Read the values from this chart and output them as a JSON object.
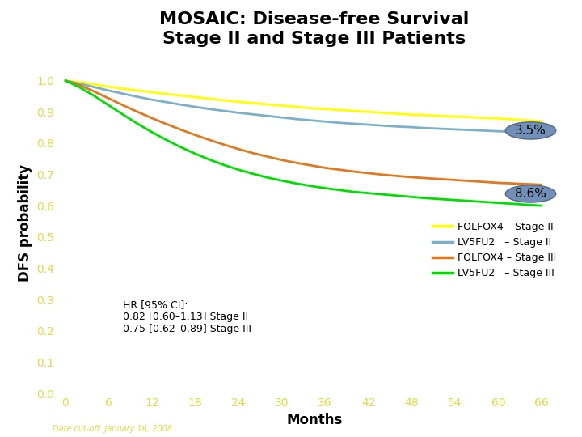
{
  "title": "MOSAIC: Disease-free Survival\nStage II and Stage III Patients",
  "xlabel": "Months",
  "ylabel": "DFS probability",
  "yticks": [
    0.0,
    0.1,
    0.2,
    0.3,
    0.4,
    0.5,
    0.6,
    0.7,
    0.8,
    0.9,
    1.0
  ],
  "xticks": [
    0,
    6,
    12,
    18,
    24,
    30,
    36,
    42,
    48,
    54,
    60,
    66
  ],
  "xlim": [
    -1,
    70
  ],
  "ylim": [
    0.0,
    1.09
  ],
  "background_color": "#ffffff",
  "title_fontsize": 16,
  "axis_label_fontsize": 12,
  "tick_label_color": "#dddd44",
  "date_cutoff_text": "Date cut-off: January 16, 2008",
  "hr_text": "HR [95% CI]:\n0.82 [0.60–1.13] Stage II\n0.75 [0.62–0.89] Stage III",
  "annotation_35": "3.5%",
  "annotation_86": "8.6%",
  "annotation_bubble_color": "#7090b8",
  "legend_entries": [
    {
      "label": "FOLFOX4 – Stage II",
      "color": "#ffff00"
    },
    {
      "label": "LV5FU2   – Stage II",
      "color": "#7ab0c8"
    },
    {
      "label": "FOLFOX4 – Stage III",
      "color": "#e07820"
    },
    {
      "label": "LV5FU2   – Stage III",
      "color": "#00dd00"
    }
  ],
  "curves": {
    "folfox4_stageII": {
      "color": "#ffff00",
      "x": [
        0,
        2,
        4,
        6,
        8,
        10,
        12,
        14,
        16,
        18,
        20,
        22,
        24,
        26,
        28,
        30,
        32,
        34,
        36,
        38,
        40,
        42,
        44,
        46,
        48,
        50,
        52,
        54,
        56,
        58,
        60,
        62,
        64,
        66
      ],
      "y": [
        1.0,
        0.995,
        0.988,
        0.98,
        0.974,
        0.968,
        0.963,
        0.957,
        0.952,
        0.947,
        0.942,
        0.937,
        0.932,
        0.928,
        0.924,
        0.92,
        0.916,
        0.912,
        0.909,
        0.906,
        0.903,
        0.9,
        0.897,
        0.894,
        0.891,
        0.889,
        0.887,
        0.885,
        0.883,
        0.881,
        0.879,
        0.876,
        0.873,
        0.87
      ]
    },
    "lv5fu2_stageII": {
      "color": "#7ab0c8",
      "x": [
        0,
        2,
        4,
        6,
        8,
        10,
        12,
        14,
        16,
        18,
        20,
        22,
        24,
        26,
        28,
        30,
        32,
        34,
        36,
        38,
        40,
        42,
        44,
        46,
        48,
        50,
        52,
        54,
        56,
        58,
        60,
        62,
        64,
        66
      ],
      "y": [
        1.0,
        0.99,
        0.979,
        0.968,
        0.958,
        0.948,
        0.939,
        0.931,
        0.923,
        0.916,
        0.909,
        0.903,
        0.897,
        0.892,
        0.887,
        0.882,
        0.877,
        0.873,
        0.869,
        0.865,
        0.862,
        0.859,
        0.856,
        0.853,
        0.851,
        0.848,
        0.846,
        0.844,
        0.842,
        0.84,
        0.838,
        0.836,
        0.834,
        0.832
      ]
    },
    "folfox4_stageIII": {
      "color": "#e07820",
      "x": [
        0,
        2,
        4,
        6,
        8,
        10,
        12,
        14,
        16,
        18,
        20,
        22,
        24,
        26,
        28,
        30,
        32,
        34,
        36,
        38,
        40,
        42,
        44,
        46,
        48,
        50,
        52,
        54,
        56,
        58,
        60,
        62,
        64,
        66
      ],
      "y": [
        1.0,
        0.985,
        0.965,
        0.943,
        0.921,
        0.9,
        0.88,
        0.861,
        0.843,
        0.826,
        0.81,
        0.795,
        0.781,
        0.768,
        0.757,
        0.746,
        0.737,
        0.729,
        0.721,
        0.715,
        0.709,
        0.704,
        0.699,
        0.695,
        0.691,
        0.688,
        0.685,
        0.682,
        0.679,
        0.676,
        0.673,
        0.671,
        0.669,
        0.667
      ]
    },
    "lv5fu2_stageIII": {
      "color": "#00dd00",
      "x": [
        0,
        2,
        4,
        6,
        8,
        10,
        12,
        14,
        16,
        18,
        20,
        22,
        24,
        26,
        28,
        30,
        32,
        34,
        36,
        38,
        40,
        42,
        44,
        46,
        48,
        50,
        52,
        54,
        56,
        58,
        60,
        62,
        64,
        66
      ],
      "y": [
        1.0,
        0.978,
        0.951,
        0.921,
        0.891,
        0.862,
        0.835,
        0.81,
        0.787,
        0.766,
        0.747,
        0.73,
        0.715,
        0.702,
        0.69,
        0.68,
        0.671,
        0.663,
        0.656,
        0.65,
        0.644,
        0.64,
        0.636,
        0.632,
        0.628,
        0.624,
        0.621,
        0.618,
        0.615,
        0.612,
        0.609,
        0.606,
        0.603,
        0.6
      ]
    }
  }
}
